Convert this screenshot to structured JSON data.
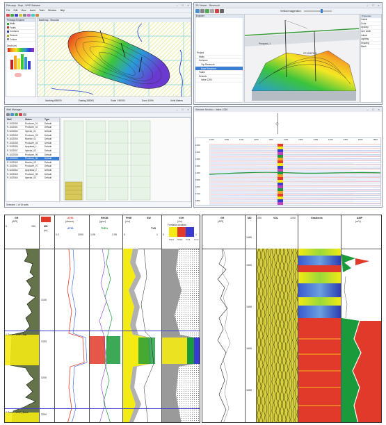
{
  "win_map": {
    "title": "Petrosys - Map - WVP Bahasa",
    "menu": [
      "File",
      "Edit",
      "View",
      "Insert",
      "Tools",
      "Window",
      "Help"
    ],
    "inner_title": "Basemap - Structure",
    "side_label_1": "Petrosys Explorer",
    "side_items": [
      "Wells",
      "Faults",
      "Contours",
      "Seismic",
      "Culture"
    ],
    "legend_title": "Depth (m)",
    "status": [
      "Northing 655000",
      "Easting 285000",
      "Scale 1:50000",
      "Zoom 100%",
      "Units Metres"
    ]
  },
  "win_3d": {
    "title": "3D Viewer - Reservoir",
    "tree_title": "Explorer",
    "tree_items": [
      "Project",
      "Wells",
      "Horizons",
      "Top Reservoir",
      "Base Reservoir",
      "Faults",
      "Seismic",
      "Inline 1250"
    ],
    "well_label_1": "Prospect_1",
    "well_label_2": "ST10987678",
    "right_panel_title": "Properties",
    "right_items": [
      "Visible",
      "Color",
      "Opacity",
      "Line width",
      "Labels",
      "Lighting",
      "Shading",
      "Mesh"
    ],
    "slider_label": "Vertical exaggeration"
  },
  "win_wells": {
    "title": "Well Manager",
    "columns": [
      "Well",
      "Status",
      "Type"
    ],
    "rows": [
      [
        "P-1022050",
        "Producer_01",
        "Default"
      ],
      [
        "P-1022051",
        "Producer_02",
        "Default"
      ],
      [
        "P-1022052",
        "Injector_01",
        "Default"
      ],
      [
        "P-1022053",
        "Producer_03",
        "Default"
      ],
      [
        "P-1022054",
        "Monitor_01",
        "Default"
      ],
      [
        "P-1022055",
        "Producer_04",
        "Default"
      ],
      [
        "P-1022056",
        "Appraisal_1",
        "Default"
      ],
      [
        "P-1022057",
        "Injector_02",
        "Default"
      ],
      [
        "P-1022058",
        "Producer_05",
        "Default"
      ],
      [
        "P-1022059",
        "Producer_06",
        "Default"
      ],
      [
        "P-1022060",
        "Monitor_02",
        "Default"
      ],
      [
        "P-1022061",
        "Producer_07",
        "Default"
      ],
      [
        "P-1022062",
        "Appraisal_2",
        "Default"
      ],
      [
        "P-1022063",
        "Producer_08",
        "Default"
      ],
      [
        "P-1022064",
        "Injector_03",
        "Default"
      ]
    ],
    "status": "Selected: 1 of 15 wells"
  },
  "win_seismic": {
    "title": "Seismic Section - Inline 1250",
    "trace_labels": [
      "1000",
      "1050",
      "1100",
      "1150",
      "1200",
      "1250",
      "1300",
      "1350",
      "1400",
      "1450",
      "1500",
      "1550"
    ],
    "time_labels": [
      "1000",
      "1100",
      "1200",
      "1300",
      "1400",
      "1500",
      "1600",
      "1700",
      "1800"
    ]
  },
  "log_a": {
    "tracks": {
      "gr": {
        "name": "GR",
        "unit": "(API)",
        "min": "0",
        "max": "150"
      },
      "md": {
        "name": "MD",
        "unit": "(m)"
      },
      "res": {
        "name": "AT90",
        "unit": "(ohmm)",
        "sub": "AT30",
        "min": "0.2",
        "max": "2000"
      },
      "dens": {
        "name": "RHOB",
        "unit": "(g/cc)",
        "sub": "TNPH",
        "min": "1.95",
        "max": "2.95"
      },
      "phi": {
        "name": "PHIE",
        "unit": "(v/v)",
        "sub": "SW",
        "min": "0",
        "max": "1"
      },
      "tvd": {
        "name": "TVD",
        "unit": "(m)"
      },
      "vsh": {
        "name": "VSH",
        "unit": "(v/v)",
        "min": "0",
        "max": "1"
      }
    },
    "panel_title": "Formation Analysis",
    "lith_labels": [
      "Sand",
      "Shale",
      "Coal",
      "Lime"
    ],
    "zone_labels": [
      "1 Zone - WVP_Top",
      "2 Zone - WVP_Base"
    ],
    "depth_labels": [
      "3100",
      "3150",
      "3200",
      "3250"
    ]
  },
  "log_b": {
    "tracks": {
      "gr": {
        "name": "GR",
        "unit": "(API)"
      },
      "md": {
        "name": "MD"
      },
      "vdl": {
        "name": "VDL",
        "min": "200",
        "max": "1200"
      },
      "gradients": {
        "name": "Gradients"
      },
      "amp": {
        "name": "AMP",
        "unit": "(mV)"
      }
    },
    "depth_labels": [
      "1480",
      "1500",
      "1550",
      "1600",
      "1650"
    ]
  },
  "colors": {
    "sand_fill": "#f4ea14",
    "shale_fill": "#4a5a2a",
    "resistivity_red": "#e23a2a",
    "density_green": "#1a9a3a",
    "selection_blue": "#3b7fd4",
    "frame": "#8a96a8"
  }
}
